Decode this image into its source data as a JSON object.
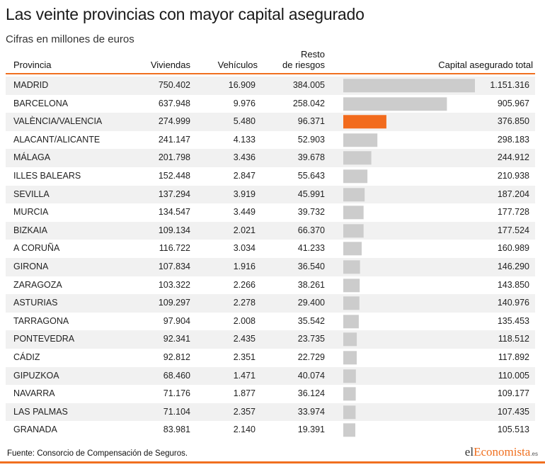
{
  "header": {
    "title": "Las veinte provincias con mayor capital asegurado",
    "subtitle": "Cifras en millones de euros"
  },
  "columns": {
    "provincia": "Provincia",
    "viviendas": "Viviendas",
    "vehiculos": "Vehículos",
    "resto_line1": "Resto",
    "resto_line2": "de riesgos",
    "total": "Capital asegurado total"
  },
  "chart_data": {
    "type": "table",
    "title": "Las veinte provincias con mayor capital asegurado",
    "subtitle": "Cifras en millones de euros",
    "columns": [
      "Provincia",
      "Viviendas",
      "Vehículos",
      "Resto de riesgos",
      "Capital asegurado total"
    ],
    "highlight_color": "#f26b1d",
    "bar_color": "#cccccc",
    "highlight_row": "VALÈNCIA/VALENCIA",
    "rows": [
      {
        "provincia": "MADRID",
        "viviendas": "750.402",
        "vehiculos": "16.909",
        "resto": "384.005",
        "total": "1.151.316",
        "total_value": 1151316
      },
      {
        "provincia": "BARCELONA",
        "viviendas": "637.948",
        "vehiculos": "9.976",
        "resto": "258.042",
        "total": "905.967",
        "total_value": 905967
      },
      {
        "provincia": "VALÈNCIA/VALENCIA",
        "viviendas": "274.999",
        "vehiculos": "5.480",
        "resto": "96.371",
        "total": "376.850",
        "total_value": 376850
      },
      {
        "provincia": "ALACANT/ALICANTE",
        "viviendas": "241.147",
        "vehiculos": "4.133",
        "resto": "52.903",
        "total": "298.183",
        "total_value": 298183
      },
      {
        "provincia": "MÁLAGA",
        "viviendas": "201.798",
        "vehiculos": "3.436",
        "resto": "39.678",
        "total": "244.912",
        "total_value": 244912
      },
      {
        "provincia": "ILLES BALEARS",
        "viviendas": "152.448",
        "vehiculos": "2.847",
        "resto": "55.643",
        "total": "210.938",
        "total_value": 210938
      },
      {
        "provincia": "SEVILLA",
        "viviendas": "137.294",
        "vehiculos": "3.919",
        "resto": "45.991",
        "total": "187.204",
        "total_value": 187204
      },
      {
        "provincia": "MURCIA",
        "viviendas": "134.547",
        "vehiculos": "3.449",
        "resto": "39.732",
        "total": "177.728",
        "total_value": 177728
      },
      {
        "provincia": "BIZKAIA",
        "viviendas": "109.134",
        "vehiculos": "2.021",
        "resto": "66.370",
        "total": "177.524",
        "total_value": 177524
      },
      {
        "provincia": "A CORUÑA",
        "viviendas": "116.722",
        "vehiculos": "3.034",
        "resto": "41.233",
        "total": "160.989",
        "total_value": 160989
      },
      {
        "provincia": "GIRONA",
        "viviendas": "107.834",
        "vehiculos": "1.916",
        "resto": "36.540",
        "total": "146.290",
        "total_value": 146290
      },
      {
        "provincia": "ZARAGOZA",
        "viviendas": "103.322",
        "vehiculos": "2.266",
        "resto": "38.261",
        "total": "143.850",
        "total_value": 143850
      },
      {
        "provincia": "ASTURIAS",
        "viviendas": "109.297",
        "vehiculos": "2.278",
        "resto": "29.400",
        "total": "140.976",
        "total_value": 140976
      },
      {
        "provincia": "TARRAGONA",
        "viviendas": "97.904",
        "vehiculos": "2.008",
        "resto": "35.542",
        "total": "135.453",
        "total_value": 135453
      },
      {
        "provincia": "PONTEVEDRA",
        "viviendas": "92.341",
        "vehiculos": "2.435",
        "resto": "23.735",
        "total": "118.512",
        "total_value": 118512
      },
      {
        "provincia": "CÁDIZ",
        "viviendas": "92.812",
        "vehiculos": "2.351",
        "resto": "22.729",
        "total": "117.892",
        "total_value": 117892
      },
      {
        "provincia": "GIPUZKOA",
        "viviendas": "68.460",
        "vehiculos": "1.471",
        "resto": "40.074",
        "total": "110.005",
        "total_value": 110005
      },
      {
        "provincia": "NAVARRA",
        "viviendas": "71.176",
        "vehiculos": "1.877",
        "resto": "36.124",
        "total": "109.177",
        "total_value": 109177
      },
      {
        "provincia": "LAS PALMAS",
        "viviendas": "71.104",
        "vehiculos": "2.357",
        "resto": "33.974",
        "total": "107.435",
        "total_value": 107435
      },
      {
        "provincia": "GRANADA",
        "viviendas": "83.981",
        "vehiculos": "2.140",
        "resto": "19.391",
        "total": "105.513",
        "total_value": 105513
      }
    ]
  },
  "footer": {
    "source": "Fuente: Consorcio de Compensación de Seguros.",
    "logo_part1": "el",
    "logo_part2": "Economista",
    "logo_tld": ".es"
  }
}
